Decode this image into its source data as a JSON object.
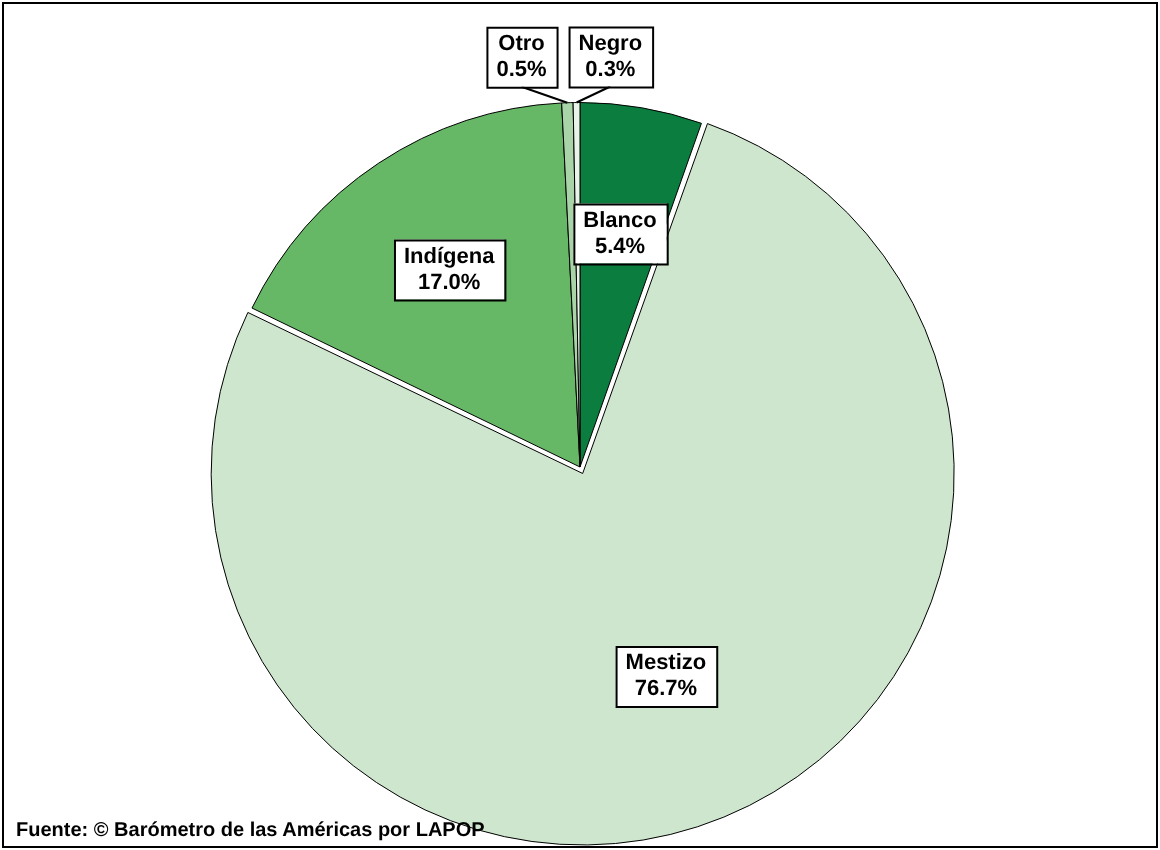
{
  "chart_data": {
    "type": "pie",
    "categories": [
      "Blanco",
      "Mestizo",
      "Indígena",
      "Otro",
      "Negro"
    ],
    "values": [
      5.4,
      76.7,
      17.0,
      0.5,
      0.3
    ],
    "value_labels": [
      "5.4%",
      "76.7%",
      "17.0%",
      "0.5%",
      "0.3%"
    ],
    "colors": [
      "#0b7d3e",
      "#cde6cd",
      "#66b866",
      "#a8d4a8",
      "#e8f4e8"
    ],
    "legend": false,
    "annotations": [
      "Fuente: © Barómetro de las Américas por LAPOP"
    ]
  }
}
